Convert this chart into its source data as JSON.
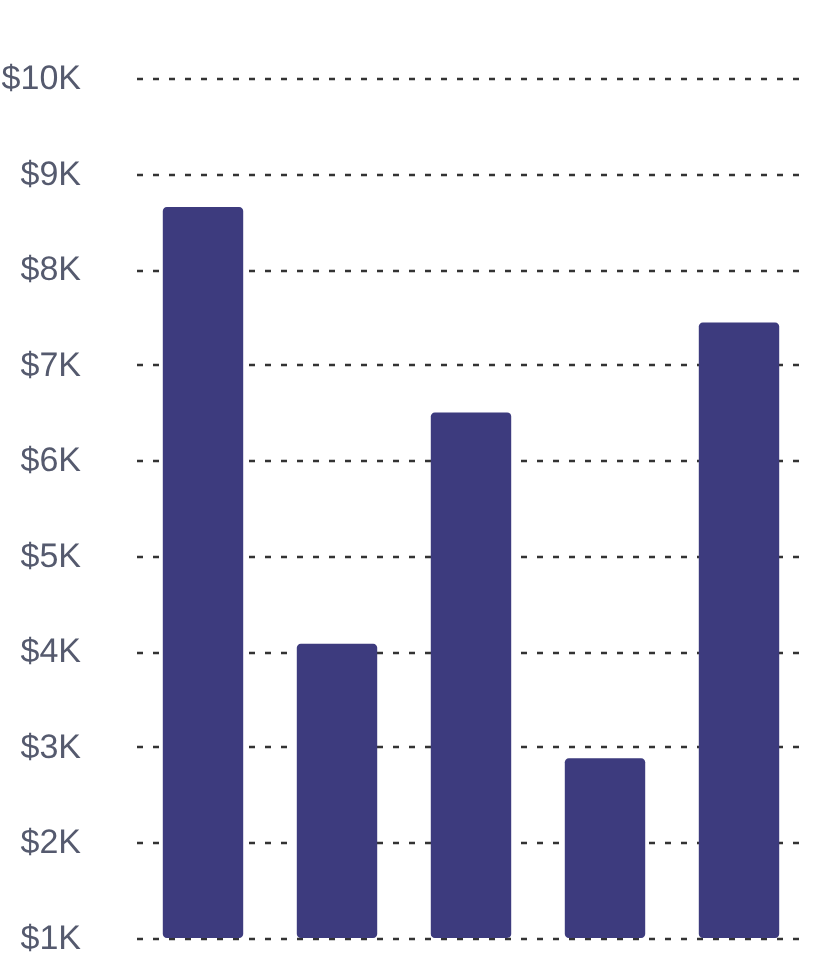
{
  "chart_data": {
    "type": "bar",
    "categories": [
      null,
      null,
      null,
      null,
      null
    ],
    "series": [
      {
        "color": "#3d3b7e",
        "values": [
          8650,
          4080,
          6500,
          2880,
          7440
        ]
      }
    ],
    "ylim": [
      1000,
      10000
    ],
    "yticks": [
      {
        "value": 1000,
        "label": "$1K"
      },
      {
        "value": 2000,
        "label": "$2K"
      },
      {
        "value": 3000,
        "label": "$3K"
      },
      {
        "value": 4000,
        "label": "$4K"
      },
      {
        "value": 5000,
        "label": "$5K"
      },
      {
        "value": 6000,
        "label": "$6K"
      },
      {
        "value": 7000,
        "label": "$7K"
      },
      {
        "value": 8000,
        "label": "$8K"
      },
      {
        "value": 9000,
        "label": "$9K"
      },
      {
        "value": 10000,
        "label": "$10K"
      }
    ],
    "grid": "y",
    "tick_labels": "y"
  }
}
